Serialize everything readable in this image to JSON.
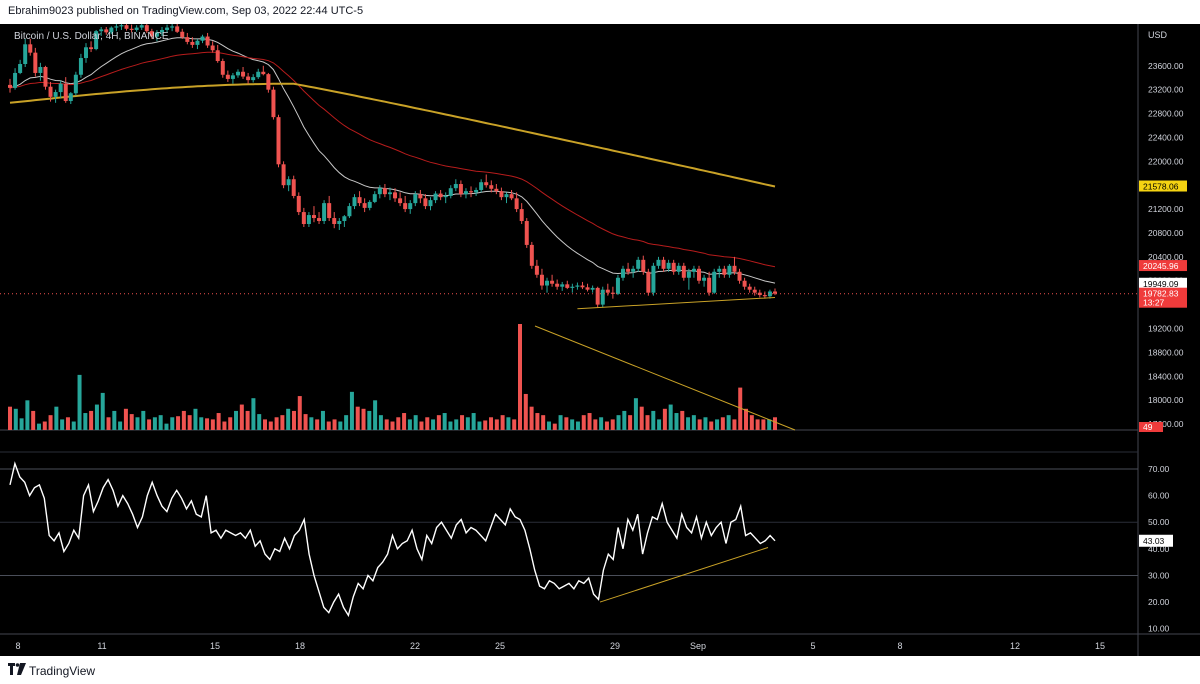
{
  "header": {
    "published_text": "Ebrahim9023 published on TradingView.com, Sep 03, 2022 22:44 UTC-5"
  },
  "footer": {
    "brand": "TradingView"
  },
  "colors": {
    "background": "#000000",
    "up": "#26a69a",
    "down": "#ef5350",
    "ema_fast": "#c8c8c8",
    "ema_mid": "#b71c1c",
    "ema_slow": "#c9a227",
    "trendline": "#c9a227",
    "rsi": "#ffffff",
    "grid": "#2a2e39",
    "text": "#d1d4dc"
  },
  "chart_data": {
    "type": "line",
    "title": "Bitcoin / U.S. Dollar, 4H, BINANCE",
    "currency": "USD",
    "x_ticks": [
      "8",
      "11",
      "15",
      "18",
      "22",
      "25",
      "29",
      "Sep",
      "5",
      "8",
      "12",
      "15"
    ],
    "price_axis": {
      "ticks": [
        "23600.00",
        "23200.00",
        "22800.00",
        "22400.00",
        "22000.00",
        "21600.00",
        "21200.00",
        "20800.00",
        "20400.00",
        "20000.00",
        "19200.00",
        "18800.00",
        "18400.00",
        "18000.00",
        "17600.00"
      ],
      "range": [
        17500,
        24300
      ]
    },
    "price_labels": [
      {
        "label": "21578.06",
        "value": 21578.06,
        "color": "#f5d312",
        "text_color": "#000000"
      },
      {
        "label": "20245.96",
        "value": 20245.96,
        "color": "#ef3b3b",
        "text_color": "#ffffff"
      },
      {
        "label": "19949.09",
        "value": 19949.09,
        "color": "#ffffff",
        "text_color": "#000000"
      },
      {
        "label": "19782.83",
        "value": 19782.83,
        "color": "#ef3b3b",
        "text_color": "#ffffff",
        "sub": "13:27"
      }
    ],
    "volume_label": "49",
    "rsi": {
      "ticks": [
        "70.00",
        "60.00",
        "50.00",
        "40.00",
        "30.00",
        "20.00",
        "10.00"
      ],
      "range": [
        8,
        76
      ],
      "current_label": "43.03",
      "values": [
        64,
        72,
        67,
        65,
        60,
        63,
        64,
        59,
        45,
        43,
        46,
        39,
        42,
        47,
        44,
        60,
        64,
        54,
        58,
        63,
        66,
        62,
        56,
        60,
        57,
        53,
        48,
        52,
        60,
        65,
        60,
        56,
        54,
        59,
        62,
        59,
        55,
        58,
        53,
        52,
        60,
        46,
        47,
        44,
        47,
        46,
        45,
        46,
        44,
        47,
        41,
        43,
        38,
        36,
        40,
        39,
        44,
        40,
        45,
        47,
        51,
        38,
        30,
        24,
        18,
        16,
        20,
        23,
        18,
        15,
        22,
        27,
        25,
        30,
        28,
        33,
        35,
        38,
        45,
        40,
        42,
        43,
        47,
        40,
        36,
        45,
        42,
        48,
        50,
        47,
        44,
        49,
        51,
        46,
        48,
        47,
        45,
        43,
        48,
        53,
        51,
        49,
        55,
        52,
        51,
        47,
        40,
        32,
        26,
        25,
        28,
        27,
        25,
        26,
        27,
        25,
        28,
        27,
        29,
        23,
        21,
        32,
        38,
        36,
        48,
        40,
        51,
        47,
        53,
        38,
        46,
        52,
        51,
        57,
        50,
        47,
        44,
        53,
        48,
        46,
        52,
        44,
        50,
        45,
        48,
        50,
        42,
        50,
        51,
        56,
        45,
        46,
        44,
        42,
        43,
        45,
        43
      ]
    },
    "volume": {
      "values": [
        22,
        20,
        11,
        28,
        18,
        6,
        8,
        14,
        22,
        10,
        12,
        8,
        52,
        16,
        18,
        24,
        35,
        12,
        18,
        8,
        20,
        15,
        12,
        18,
        10,
        12,
        14,
        6,
        12,
        13,
        18,
        14,
        20,
        12,
        11,
        10,
        16,
        8,
        12,
        18,
        24,
        18,
        30,
        15,
        10,
        8,
        12,
        14,
        20,
        18,
        32,
        15,
        12,
        10,
        18,
        8,
        10,
        8,
        14,
        36,
        22,
        20,
        18,
        28,
        14,
        10,
        8,
        12,
        16,
        10,
        14,
        8,
        12,
        10,
        14,
        16,
        8,
        10,
        14,
        12,
        16,
        8,
        9,
        12,
        10,
        14,
        12,
        10,
        100,
        34,
        22,
        16,
        14,
        8,
        6,
        14,
        12,
        10,
        8,
        14,
        16,
        10,
        12,
        8,
        10,
        14,
        18,
        14,
        30,
        22,
        14,
        18,
        10,
        20,
        24,
        16,
        18,
        12,
        14,
        10,
        12,
        8,
        10,
        12,
        14,
        10,
        40,
        20,
        14,
        10,
        10,
        10,
        12
      ]
    },
    "candles": [
      [
        23280,
        23380,
        23150,
        23230
      ],
      [
        23230,
        23560,
        23200,
        23480
      ],
      [
        23480,
        23700,
        23460,
        23630
      ],
      [
        23630,
        24050,
        23580,
        23960
      ],
      [
        23960,
        24050,
        23770,
        23820
      ],
      [
        23820,
        23900,
        23420,
        23480
      ],
      [
        23480,
        23650,
        23350,
        23580
      ],
      [
        23580,
        23600,
        23200,
        23250
      ],
      [
        23250,
        23330,
        23000,
        23080
      ],
      [
        23080,
        23200,
        22980,
        23160
      ],
      [
        23160,
        23350,
        23060,
        23300
      ],
      [
        23300,
        23410,
        22980,
        23010
      ],
      [
        23010,
        23160,
        22960,
        23140
      ],
      [
        23140,
        23500,
        23100,
        23450
      ],
      [
        23450,
        23800,
        23400,
        23730
      ],
      [
        23730,
        23980,
        23650,
        23910
      ],
      [
        23910,
        24010,
        23830,
        23880
      ],
      [
        23880,
        24200,
        23860,
        24180
      ],
      [
        24180,
        24250,
        24100,
        24210
      ],
      [
        24210,
        24250,
        24120,
        24160
      ],
      [
        24160,
        24260,
        24130,
        24240
      ],
      [
        24240,
        24300,
        24180,
        24260
      ],
      [
        24260,
        24300,
        24200,
        24280
      ],
      [
        24280,
        24300,
        24190,
        24220
      ],
      [
        24220,
        24290,
        24160,
        24200
      ],
      [
        24200,
        24280,
        24170,
        24240
      ],
      [
        24240,
        24300,
        24200,
        24280
      ],
      [
        24280,
        24300,
        24150,
        24180
      ],
      [
        24180,
        24220,
        24050,
        24090
      ],
      [
        24090,
        24200,
        24010,
        24160
      ],
      [
        24160,
        24250,
        24100,
        24200
      ],
      [
        24200,
        24290,
        24160,
        24240
      ],
      [
        24240,
        24300,
        24180,
        24260
      ],
      [
        24260,
        24300,
        24150,
        24170
      ],
      [
        24170,
        24220,
        24050,
        24080
      ],
      [
        24080,
        24150,
        23960,
        24000
      ],
      [
        24000,
        24080,
        23900,
        23950
      ],
      [
        23950,
        24050,
        23880,
        24020
      ],
      [
        24020,
        24120,
        23980,
        24090
      ],
      [
        24090,
        24150,
        23900,
        23940
      ],
      [
        23940,
        24010,
        23820,
        23860
      ],
      [
        23860,
        23950,
        23650,
        23680
      ],
      [
        23680,
        23720,
        23400,
        23450
      ],
      [
        23450,
        23520,
        23330,
        23380
      ],
      [
        23380,
        23480,
        23300,
        23440
      ],
      [
        23440,
        23540,
        23400,
        23500
      ],
      [
        23500,
        23580,
        23380,
        23420
      ],
      [
        23420,
        23480,
        23300,
        23360
      ],
      [
        23360,
        23460,
        23320,
        23410
      ],
      [
        23410,
        23550,
        23380,
        23500
      ],
      [
        23500,
        23600,
        23440,
        23460
      ],
      [
        23460,
        23480,
        23150,
        23200
      ],
      [
        23200,
        23250,
        22700,
        22740
      ],
      [
        22740,
        22780,
        21900,
        21950
      ],
      [
        21950,
        22000,
        21550,
        21600
      ],
      [
        21600,
        21750,
        21500,
        21700
      ],
      [
        21700,
        21760,
        21380,
        21420
      ],
      [
        21420,
        21480,
        21100,
        21150
      ],
      [
        21150,
        21220,
        20900,
        20950
      ],
      [
        20950,
        21150,
        20900,
        21100
      ],
      [
        21100,
        21250,
        20980,
        21050
      ],
      [
        21050,
        21150,
        20950,
        21000
      ],
      [
        21000,
        21350,
        20950,
        21300
      ],
      [
        21300,
        21420,
        21000,
        21050
      ],
      [
        21050,
        21150,
        20880,
        20950
      ],
      [
        20950,
        21050,
        20850,
        21000
      ],
      [
        21000,
        21100,
        20900,
        21080
      ],
      [
        21080,
        21300,
        21050,
        21250
      ],
      [
        21250,
        21450,
        21200,
        21400
      ],
      [
        21400,
        21500,
        21250,
        21300
      ],
      [
        21300,
        21380,
        21150,
        21220
      ],
      [
        21220,
        21350,
        21180,
        21320
      ],
      [
        21320,
        21500,
        21300,
        21450
      ],
      [
        21450,
        21600,
        21380,
        21550
      ],
      [
        21550,
        21620,
        21400,
        21450
      ],
      [
        21450,
        21560,
        21350,
        21480
      ],
      [
        21480,
        21550,
        21320,
        21380
      ],
      [
        21380,
        21480,
        21250,
        21300
      ],
      [
        21300,
        21420,
        21150,
        21200
      ],
      [
        21200,
        21350,
        21120,
        21300
      ],
      [
        21300,
        21500,
        21250,
        21450
      ],
      [
        21450,
        21520,
        21300,
        21380
      ],
      [
        21380,
        21450,
        21200,
        21250
      ],
      [
        21250,
        21400,
        21180,
        21350
      ],
      [
        21350,
        21500,
        21300,
        21460
      ],
      [
        21460,
        21520,
        21350,
        21400
      ],
      [
        21400,
        21480,
        21300,
        21420
      ],
      [
        21420,
        21600,
        21380,
        21550
      ],
      [
        21550,
        21700,
        21500,
        21620
      ],
      [
        21620,
        21680,
        21400,
        21450
      ],
      [
        21450,
        21550,
        21380,
        21500
      ],
      [
        21500,
        21580,
        21400,
        21480
      ],
      [
        21480,
        21560,
        21420,
        21520
      ],
      [
        21520,
        21700,
        21480,
        21650
      ],
      [
        21650,
        21780,
        21560,
        21600
      ],
      [
        21600,
        21680,
        21480,
        21540
      ],
      [
        21540,
        21620,
        21450,
        21500
      ],
      [
        21500,
        21560,
        21350,
        21400
      ],
      [
        21400,
        21480,
        21300,
        21450
      ],
      [
        21450,
        21520,
        21350,
        21380
      ],
      [
        21380,
        21480,
        21150,
        21200
      ],
      [
        21200,
        21300,
        20950,
        21000
      ],
      [
        21000,
        21050,
        20550,
        20600
      ],
      [
        20600,
        20650,
        20200,
        20250
      ],
      [
        20250,
        20350,
        20050,
        20100
      ],
      [
        20100,
        20200,
        19850,
        19920
      ],
      [
        19920,
        20050,
        19800,
        20000
      ],
      [
        20000,
        20100,
        19900,
        19950
      ],
      [
        19950,
        20020,
        19850,
        19900
      ],
      [
        19900,
        19980,
        19830,
        19940
      ],
      [
        19940,
        20000,
        19860,
        19880
      ],
      [
        19880,
        19950,
        19800,
        19900
      ],
      [
        19900,
        19970,
        19850,
        19920
      ],
      [
        19920,
        19980,
        19860,
        19890
      ],
      [
        19890,
        19950,
        19820,
        19850
      ],
      [
        19850,
        19920,
        19800,
        19880
      ],
      [
        19880,
        19900,
        19550,
        19600
      ],
      [
        19600,
        19900,
        19550,
        19850
      ],
      [
        19850,
        19950,
        19750,
        19800
      ],
      [
        19800,
        19900,
        19700,
        19780
      ],
      [
        19780,
        20100,
        19760,
        20050
      ],
      [
        20050,
        20250,
        20000,
        20200
      ],
      [
        20200,
        20300,
        20100,
        20150
      ],
      [
        20150,
        20250,
        20050,
        20200
      ],
      [
        20200,
        20400,
        20150,
        20350
      ],
      [
        20350,
        20420,
        20100,
        20150
      ],
      [
        20150,
        20200,
        19750,
        19800
      ],
      [
        19800,
        20300,
        19750,
        20250
      ],
      [
        20250,
        20400,
        20200,
        20350
      ],
      [
        20350,
        20400,
        20150,
        20200
      ],
      [
        20200,
        20350,
        20150,
        20300
      ],
      [
        20300,
        20350,
        20100,
        20150
      ],
      [
        20150,
        20300,
        20100,
        20250
      ],
      [
        20250,
        20300,
        20000,
        20050
      ],
      [
        20050,
        20200,
        19850,
        20150
      ],
      [
        20150,
        20250,
        20050,
        20200
      ],
      [
        20200,
        20250,
        19950,
        20000
      ],
      [
        20000,
        20100,
        19900,
        20050
      ],
      [
        20050,
        20150,
        19750,
        19800
      ],
      [
        19800,
        20200,
        19780,
        20150
      ],
      [
        20150,
        20250,
        20050,
        20200
      ],
      [
        20200,
        20250,
        20050,
        20100
      ],
      [
        20100,
        20280,
        20050,
        20250
      ],
      [
        20250,
        20400,
        20100,
        20150
      ],
      [
        20150,
        20200,
        19950,
        20000
      ],
      [
        20000,
        20050,
        19850,
        19900
      ],
      [
        19900,
        19950,
        19800,
        19850
      ],
      [
        19850,
        19900,
        19750,
        19800
      ],
      [
        19800,
        19850,
        19720,
        19760
      ],
      [
        19760,
        19820,
        19700,
        19740
      ],
      [
        19740,
        19850,
        19700,
        19820
      ],
      [
        19820,
        19870,
        19760,
        19783
      ]
    ]
  }
}
